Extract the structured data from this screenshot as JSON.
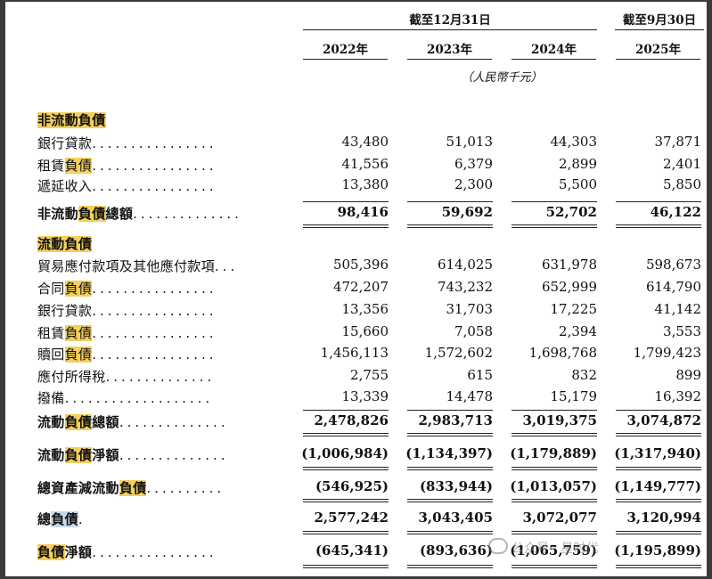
{
  "header": {
    "group1": "截至12月31日",
    "group2": "截至9月30日",
    "years": [
      "2022年",
      "2023年",
      "2024年",
      "2025年"
    ],
    "unit": "（人民幣千元）"
  },
  "sections": {
    "non_current_title": "非流動負債",
    "current_title": "流動負債"
  },
  "rows": [
    {
      "pre": "銀行貸款",
      "hl": "",
      "post": "",
      "values": [
        "43,480",
        "51,013",
        "44,303",
        "37,871"
      ]
    },
    {
      "pre": "租賃",
      "hl": "負債",
      "post": "",
      "values": [
        "41,556",
        "6,379",
        "2,899",
        "2,401"
      ]
    },
    {
      "pre": "遞延收入",
      "hl": "",
      "post": "",
      "values": [
        "13,380",
        "2,300",
        "5,500",
        "5,850"
      ]
    },
    {
      "pre": "非流動",
      "hl": "負債",
      "post": "總額",
      "values": [
        "98,416",
        "59,692",
        "52,702",
        "46,122"
      ]
    },
    {
      "pre": "貿易應付款項及其他應付款項",
      "hl": "",
      "post": "",
      "values": [
        "505,396",
        "614,025",
        "631,978",
        "598,673"
      ]
    },
    {
      "pre": "合同",
      "hl": "負債",
      "post": "",
      "values": [
        "472,207",
        "743,232",
        "652,999",
        "614,790"
      ]
    },
    {
      "pre": "銀行貸款",
      "hl": "",
      "post": "",
      "values": [
        "13,356",
        "31,703",
        "17,225",
        "41,142"
      ]
    },
    {
      "pre": "租賃",
      "hl": "負債",
      "post": "",
      "values": [
        "15,660",
        "7,058",
        "2,394",
        "3,553"
      ]
    },
    {
      "pre": "贖回",
      "hl": "負債",
      "post": "",
      "values": [
        "1,456,113",
        "1,572,602",
        "1,698,768",
        "1,799,423"
      ]
    },
    {
      "pre": "應付所得稅",
      "hl": "",
      "post": "",
      "values": [
        "2,755",
        "615",
        "832",
        "899"
      ]
    },
    {
      "pre": "撥備",
      "hl": "",
      "post": "",
      "values": [
        "13,339",
        "14,478",
        "15,179",
        "16,392"
      ]
    },
    {
      "pre": "流動",
      "hl": "負債",
      "post": "總額",
      "values": [
        "2,478,826",
        "2,983,713",
        "3,019,375",
        "3,074,872"
      ]
    },
    {
      "pre": "流動",
      "hl": "負債",
      "post": "淨額",
      "values": [
        "(1,006,984)",
        "(1,134,397)",
        "(1,179,889)",
        "(1,317,940)"
      ]
    },
    {
      "pre": "總資產減流動",
      "hl": "負債",
      "post": "",
      "values": [
        "(546,925)",
        "(833,944)",
        "(1,013,057)",
        "(1,149,777)"
      ]
    },
    {
      "pre": "總",
      "hl": "負債",
      "post": "",
      "values": [
        "2,577,242",
        "3,043,405",
        "3,072,077",
        "3,120,994"
      ]
    },
    {
      "pre": "",
      "hl": "負債",
      "post": "淨額",
      "values": [
        "(645,341)",
        "(893,636)",
        "(1,065,759)",
        "(1,195,899)"
      ]
    }
  ],
  "dot_leaders": [
    "................",
    "................",
    "................",
    "..............",
    "...",
    "................",
    "................",
    "................",
    "................",
    "..............",
    "...................",
    "..............",
    "..............",
    "..........",
    ".",
    "................"
  ],
  "watermark": "公众号 · 星时代"
}
